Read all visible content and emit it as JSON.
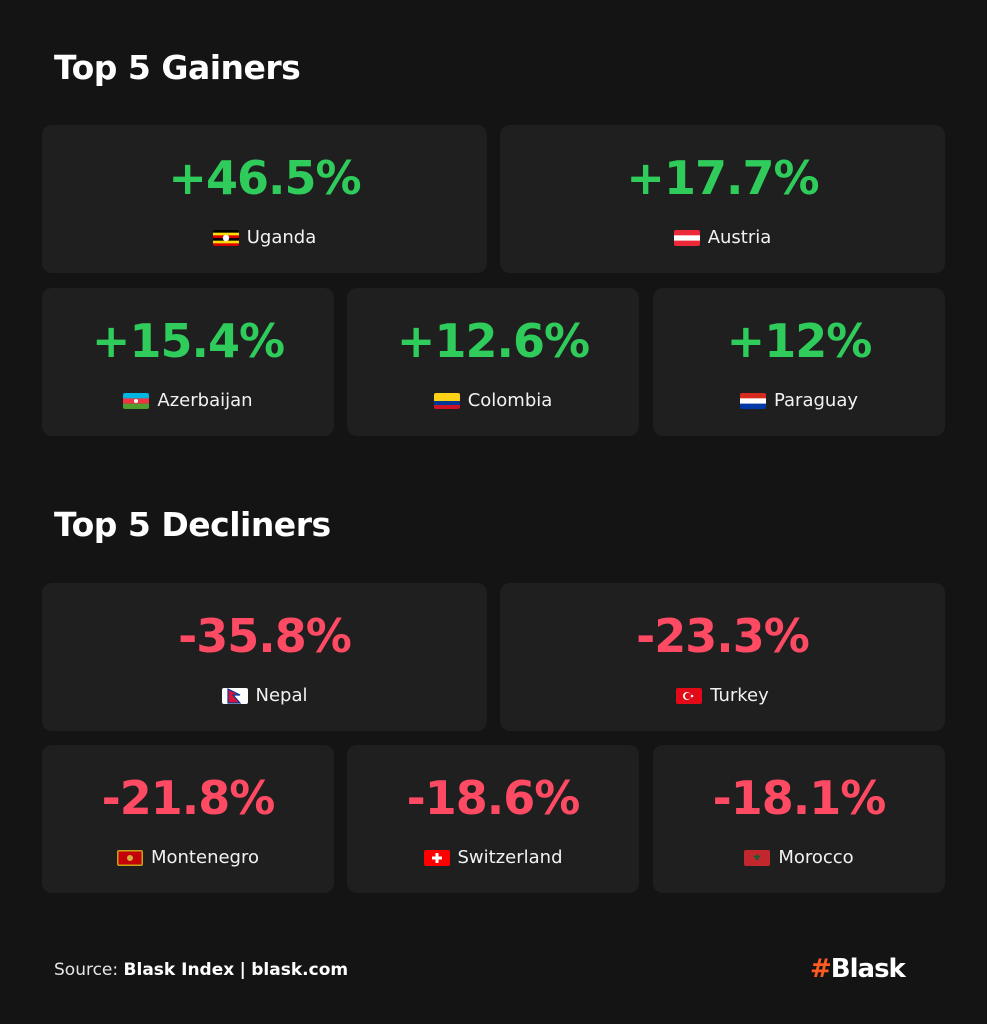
{
  "sections": [
    {
      "title": "Top 5 Gainers",
      "items": [
        {
          "value": "+46.5%",
          "country": "Uganda"
        },
        {
          "value": "+17.7%",
          "country": "Austria"
        },
        {
          "value": "+15.4%",
          "country": "Azerbaijan"
        },
        {
          "value": "+12.6%",
          "country": "Colombia"
        },
        {
          "value": "+12%",
          "country": "Paraguay"
        }
      ]
    },
    {
      "title": "Top 5 Decliners",
      "items": [
        {
          "value": "-35.8%",
          "country": "Nepal"
        },
        {
          "value": "-23.3%",
          "country": "Turkey"
        },
        {
          "value": "-21.8%",
          "country": "Montenegro"
        },
        {
          "value": "-18.6%",
          "country": "Switzerland"
        },
        {
          "value": "-18.1%",
          "country": "Morocco"
        }
      ]
    }
  ],
  "footer": {
    "source_label": "Source:",
    "source": "Blask Index",
    "separator": "|",
    "site": "blask.com"
  },
  "logo": {
    "mark": "#",
    "name": "Blask"
  }
}
